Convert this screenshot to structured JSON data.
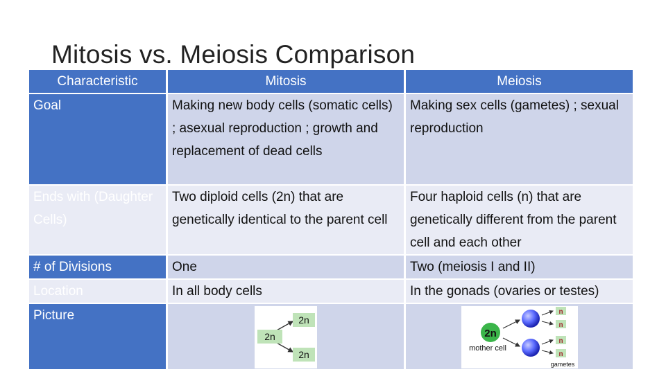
{
  "title": "Mitosis vs. Meiosis Comparison",
  "headers": {
    "characteristic": "Characteristic",
    "mitosis": "Mitosis",
    "meiosis": "Meiosis"
  },
  "rows": [
    {
      "label": "Goal",
      "mitosis": "Making new body cells (somatic cells) ; asexual reproduction ; growth and replacement of dead cells",
      "meiosis": "Making sex cells (gametes) ; sexual reproduction"
    },
    {
      "label": "Ends with (Daughter Cells)",
      "mitosis": "Two diploid cells (2n) that are genetically identical to the parent cell",
      "meiosis": "Four haploid cells (n) that are genetically different from the parent cell and each other"
    },
    {
      "label": "# of Divisions",
      "mitosis": "One",
      "meiosis": "Two (meiosis I and II)"
    },
    {
      "label": "Location",
      "mitosis": "In all body cells",
      "meiosis": "In the gonads (ovaries or testes)"
    },
    {
      "label": "Picture"
    }
  ],
  "mitosis_diagram": {
    "parent": "2n",
    "daughter_top": "2n",
    "daughter_bottom": "2n"
  },
  "meiosis_diagram": {
    "parent": "2n",
    "parent_caption": "mother cell",
    "gamete": "n",
    "gametes_caption": "gametes"
  },
  "colors": {
    "header": "#4472c4",
    "row_dark": "#cfd5ea",
    "row_light": "#e9ebf5",
    "cell_fill": "#5b6bff"
  }
}
